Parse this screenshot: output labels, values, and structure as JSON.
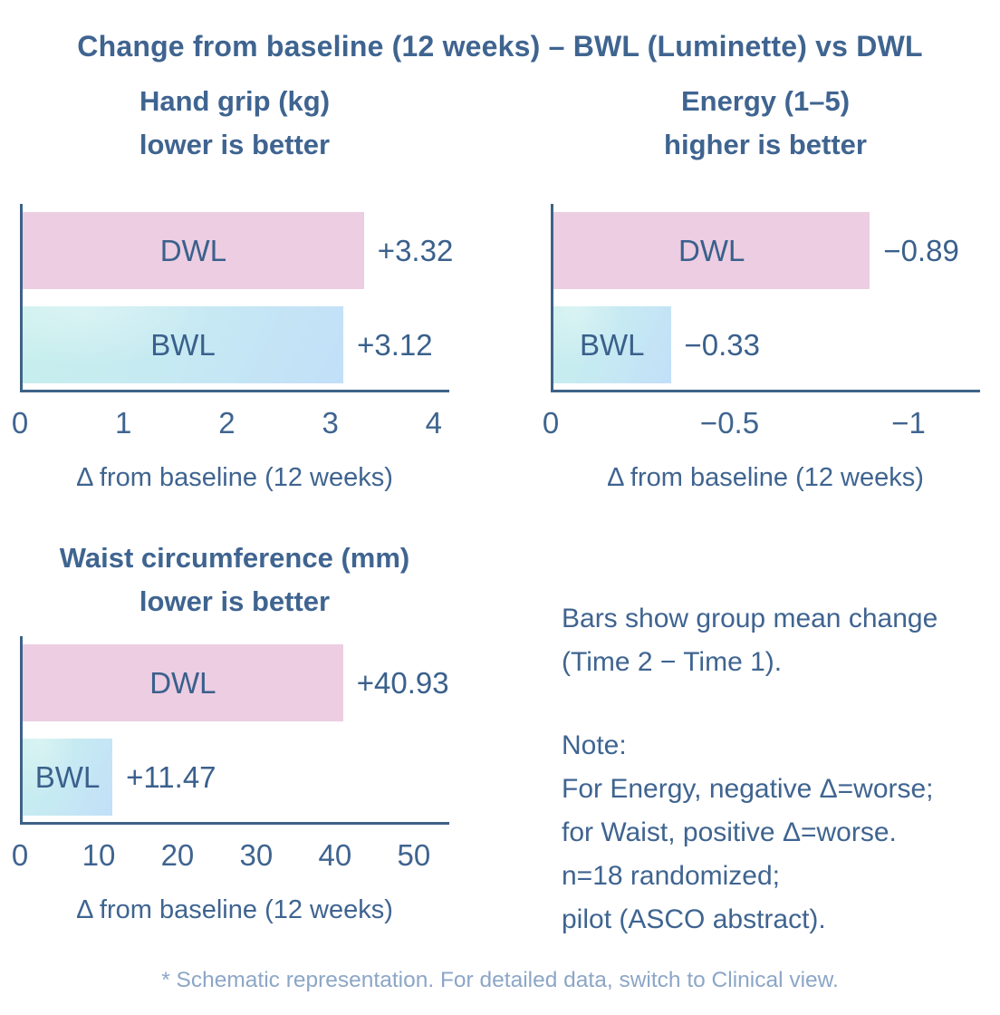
{
  "title": "Change from baseline (12 weeks) – BWL (Luminette) vs DWL",
  "colors": {
    "text": "#3f6490",
    "axis": "#3e6287",
    "bar_dwl_pink": "#eccde2",
    "bar_bwl_blue_start": "#c7efec",
    "bar_bwl_blue_end": "#c2dff8",
    "footer_text": "#8ca6c7"
  },
  "chart_data": [
    {
      "type": "bar",
      "title": "Hand grip (kg)",
      "subtitle": "lower is better",
      "categories": [
        "DWL",
        "BWL"
      ],
      "values": [
        3.32,
        3.12
      ],
      "value_labels": [
        "+3.32",
        "+3.12"
      ],
      "xlabel": "Δ from baseline (12 weeks)",
      "tick_labels": [
        "0",
        "1",
        "2",
        "3",
        "4"
      ],
      "tick_values": [
        0,
        1,
        2,
        3,
        4
      ],
      "axis_span": 4.15,
      "legend_position": "none",
      "grid": false
    },
    {
      "type": "bar",
      "title": "Energy (1–5)",
      "subtitle": "higher is better",
      "categories": [
        "DWL",
        "BWL"
      ],
      "values": [
        -0.89,
        -0.33
      ],
      "value_labels": [
        "−0.89",
        "−0.33"
      ],
      "xlabel": "Δ from baseline (12 weeks)",
      "tick_labels": [
        "0",
        "−0.5",
        "−1"
      ],
      "tick_values": [
        0,
        -0.5,
        -1
      ],
      "axis_span": 1.2,
      "legend_position": "none",
      "grid": false
    },
    {
      "type": "bar",
      "title": "Waist circumference (mm)",
      "subtitle": "lower is better",
      "categories": [
        "DWL",
        "BWL"
      ],
      "values": [
        40.93,
        11.47
      ],
      "value_labels": [
        "+40.93",
        "+11.47"
      ],
      "xlabel": "Δ from baseline (12 weeks)",
      "tick_labels": [
        "0",
        "10",
        "20",
        "30",
        "40",
        "50"
      ],
      "tick_values": [
        0,
        10,
        20,
        30,
        40,
        50
      ],
      "axis_span": 54.5,
      "legend_position": "none",
      "grid": false
    }
  ],
  "notes": {
    "caption_line1": "Bars show group mean change",
    "caption_line2": "(Time 2 − Time 1).",
    "note_label": "Note:",
    "note_lines": [
      "For Energy, negative Δ=worse;",
      "for Waist, positive Δ=worse.",
      "n=18 randomized;",
      "pilot (ASCO abstract)."
    ]
  },
  "footer": "* Schematic representation. For detailed data, switch to Clinical view."
}
